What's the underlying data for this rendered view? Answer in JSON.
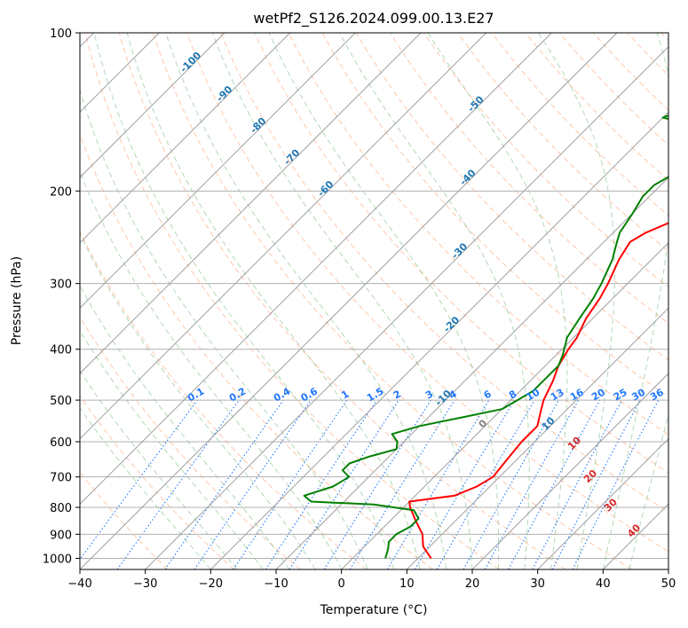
{
  "chart_data": {
    "type": "line",
    "diagram": "skew-t log-p",
    "title": "wetPf2_S126.2024.099.00.13.E27",
    "xlabel": "Temperature (°C)",
    "ylabel": "Pressure (hPa)",
    "xlim": [
      -40,
      50
    ],
    "ylim": [
      1050,
      100
    ],
    "y_scale": "log",
    "grid": true,
    "x_ticks": [
      -40,
      -30,
      -20,
      -10,
      0,
      10,
      20,
      30,
      40,
      50
    ],
    "x_tick_labels": [
      "−40",
      "−30",
      "−20",
      "−10",
      "0",
      "10",
      "20",
      "30",
      "40",
      "50"
    ],
    "y_ticks": [
      1000,
      900,
      800,
      700,
      600,
      500,
      400,
      300,
      200,
      100
    ],
    "y_tick_labels": [
      "1000",
      "900",
      "800",
      "700",
      "600",
      "500",
      "400",
      "300",
      "200",
      "100"
    ],
    "colors": {
      "temperature": "#ff0000",
      "dewpoint": "#008000",
      "isotherm": "#999999",
      "dry_adiabat": "#ff9966",
      "moist_adiabat": "#66b366",
      "mixing_ratio": "#1f77ff",
      "isotherm_label": "#1f77b4",
      "theta_label": "#d62728"
    },
    "series": [
      {
        "key": "temperature",
        "points": [
          [
            1000,
            12
          ],
          [
            950,
            9
          ],
          [
            900,
            7
          ],
          [
            850,
            4
          ],
          [
            800,
            1
          ],
          [
            780,
            0
          ],
          [
            760,
            6
          ],
          [
            730,
            8
          ],
          [
            700,
            9
          ],
          [
            650,
            8.5
          ],
          [
            600,
            8
          ],
          [
            560,
            8
          ],
          [
            520,
            6
          ],
          [
            500,
            5
          ],
          [
            460,
            3.5
          ],
          [
            430,
            2
          ],
          [
            400,
            1
          ],
          [
            380,
            0.5
          ],
          [
            350,
            -1
          ],
          [
            320,
            -2
          ],
          [
            300,
            -3
          ],
          [
            270,
            -5
          ],
          [
            250,
            -6
          ],
          [
            240,
            -5
          ],
          [
            230,
            -3
          ],
          [
            220,
            -2
          ],
          [
            200,
            -1
          ],
          [
            180,
            1
          ],
          [
            170,
            4
          ],
          [
            160,
            8
          ],
          [
            150,
            12
          ],
          [
            140,
            14
          ],
          [
            130,
            15
          ],
          [
            120,
            16
          ],
          [
            110,
            18
          ],
          [
            100,
            20
          ]
        ]
      },
      {
        "key": "dewpoint",
        "points": [
          [
            1000,
            5
          ],
          [
            960,
            4
          ],
          [
            930,
            3
          ],
          [
            900,
            3
          ],
          [
            870,
            4
          ],
          [
            840,
            4
          ],
          [
            810,
            2
          ],
          [
            790,
            -5
          ],
          [
            780,
            -15
          ],
          [
            760,
            -17
          ],
          [
            730,
            -14
          ],
          [
            700,
            -13
          ],
          [
            680,
            -15
          ],
          [
            660,
            -15
          ],
          [
            640,
            -13
          ],
          [
            620,
            -10
          ],
          [
            600,
            -11
          ],
          [
            580,
            -13
          ],
          [
            560,
            -10
          ],
          [
            540,
            -5
          ],
          [
            520,
            0
          ],
          [
            500,
            1
          ],
          [
            480,
            2
          ],
          [
            460,
            2
          ],
          [
            430,
            2
          ],
          [
            410,
            1
          ],
          [
            380,
            -1
          ],
          [
            350,
            -2
          ],
          [
            320,
            -3
          ],
          [
            300,
            -4
          ],
          [
            270,
            -6
          ],
          [
            260,
            -7
          ],
          [
            250,
            -8
          ],
          [
            240,
            -9
          ],
          [
            220,
            -10
          ],
          [
            205,
            -11
          ],
          [
            195,
            -11
          ],
          [
            180,
            -9
          ],
          [
            172,
            -6
          ],
          [
            165,
            -7
          ],
          [
            158,
            -10
          ],
          [
            150,
            -14
          ],
          [
            145,
            -20
          ],
          [
            140,
            -18
          ],
          [
            130,
            -11
          ],
          [
            115,
            -5
          ],
          [
            100,
            0
          ]
        ]
      }
    ],
    "isotherm_labels": [
      "-100",
      "-90",
      "-80",
      "-70",
      "-60",
      "-50",
      "-40",
      "-30",
      "-20",
      "-10",
      "0",
      "10"
    ],
    "theta_labels": [
      "10",
      "20",
      "30",
      "40"
    ],
    "mixing_ratio_labels": [
      "0.1",
      "0.2",
      "0.4",
      "0.6",
      "1",
      "1.5",
      "2",
      "3",
      "4",
      "6",
      "8",
      "10",
      "13",
      "16",
      "20",
      "25",
      "30",
      "36"
    ]
  }
}
